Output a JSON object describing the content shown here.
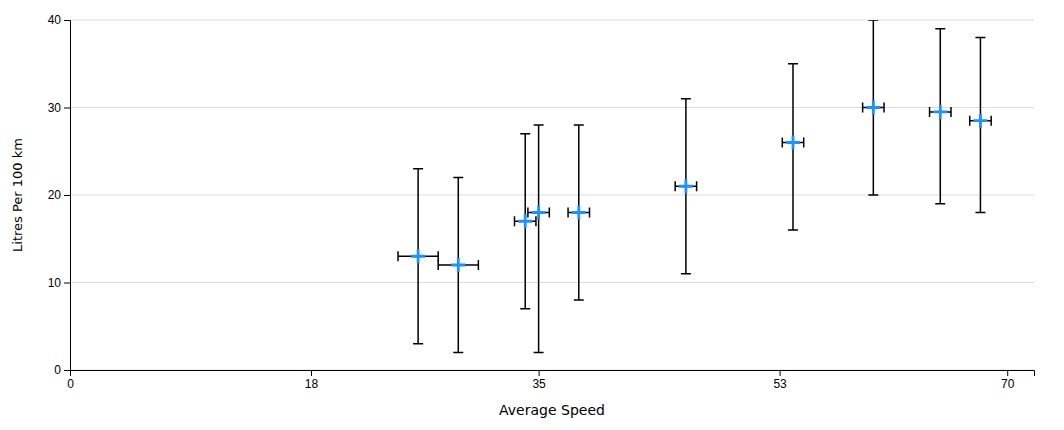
{
  "chart_data": {
    "type": "scatter",
    "xlabel": "Average Speed",
    "ylabel": "Litres Per 100 km",
    "x": [
      26,
      29,
      34,
      35,
      38,
      46,
      54,
      60,
      65,
      68
    ],
    "values": [
      13,
      12,
      17,
      18,
      18,
      21,
      26,
      30,
      29.5,
      28.5
    ],
    "y_err_upper": [
      10,
      10,
      10,
      10,
      10,
      10,
      9,
      10,
      9.5,
      9.5
    ],
    "y_err_lower": [
      10,
      10,
      10,
      16,
      10,
      10,
      10,
      10,
      10.5,
      10.5
    ],
    "x_err": [
      1.5,
      1.5,
      0.8,
      0.8,
      0.8,
      0.8,
      0.8,
      0.8,
      0.8,
      0.8
    ],
    "color": "#1E90FF",
    "marker": "plus",
    "xlim": [
      0,
      72
    ],
    "ylim": [
      0,
      40
    ],
    "xticks": [
      0,
      18,
      35,
      53,
      70
    ],
    "yticks": [
      0,
      10,
      20,
      30,
      40
    ],
    "grid": true
  }
}
